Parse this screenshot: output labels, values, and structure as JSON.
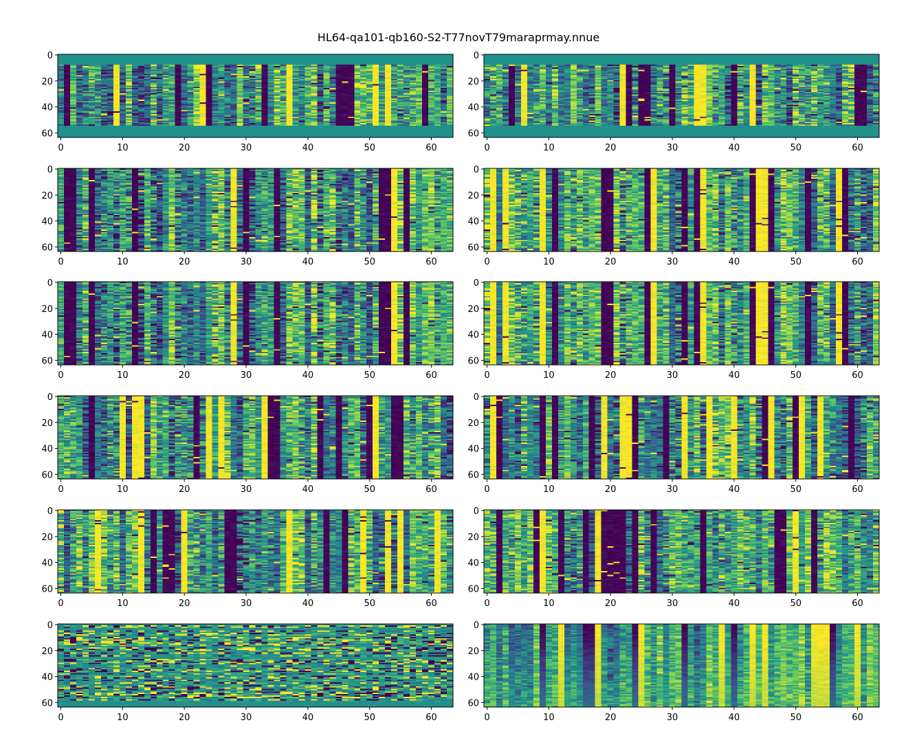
{
  "title": "HL64-qa101-qb160-S2-T77novT79maraprmay.nnue",
  "chart_data": {
    "type": "heatmap",
    "colormap": "viridis",
    "colormap_stops": [
      "#440154",
      "#3b528b",
      "#21918c",
      "#5ec962",
      "#fde725"
    ],
    "grid": false,
    "layout": {
      "rows": 6,
      "cols": 2
    },
    "matrix_shape": [
      64,
      64
    ],
    "x_ticks": [
      0,
      10,
      20,
      30,
      40,
      50,
      60
    ],
    "y_ticks": [
      0,
      20,
      40,
      60
    ],
    "x_tick_labels": [
      "0",
      "10",
      "20",
      "30",
      "40",
      "50",
      "60"
    ],
    "y_tick_labels": [
      "0",
      "20",
      "40",
      "60"
    ],
    "panels": [
      {
        "id": "r1c1",
        "seed": 11,
        "band_top": 8,
        "band_bottom": 55,
        "style": "columns"
      },
      {
        "id": "r1c2",
        "seed": 23,
        "band_top": 8,
        "band_bottom": 55,
        "style": "columns"
      },
      {
        "id": "r2c1",
        "seed": 37,
        "band_top": 0,
        "band_bottom": 64,
        "style": "columns"
      },
      {
        "id": "r2c2",
        "seed": 41,
        "band_top": 0,
        "band_bottom": 64,
        "style": "columns"
      },
      {
        "id": "r3c1",
        "seed": 37,
        "band_top": 0,
        "band_bottom": 64,
        "style": "columns"
      },
      {
        "id": "r3c2",
        "seed": 41,
        "band_top": 0,
        "band_bottom": 64,
        "style": "columns"
      },
      {
        "id": "r4c1",
        "seed": 59,
        "band_top": 0,
        "band_bottom": 64,
        "style": "columns"
      },
      {
        "id": "r4c2",
        "seed": 67,
        "band_top": 0,
        "band_bottom": 64,
        "style": "columns"
      },
      {
        "id": "r5c1",
        "seed": 73,
        "band_top": 0,
        "band_bottom": 64,
        "style": "columns"
      },
      {
        "id": "r5c2",
        "seed": 83,
        "band_top": 0,
        "band_bottom": 64,
        "style": "columns"
      },
      {
        "id": "r6c1",
        "seed": 97,
        "band_top": 0,
        "band_bottom": 60,
        "style": "rows"
      },
      {
        "id": "r6c2",
        "seed": 101,
        "band_top": 0,
        "band_bottom": 64,
        "style": "mixed"
      }
    ]
  }
}
